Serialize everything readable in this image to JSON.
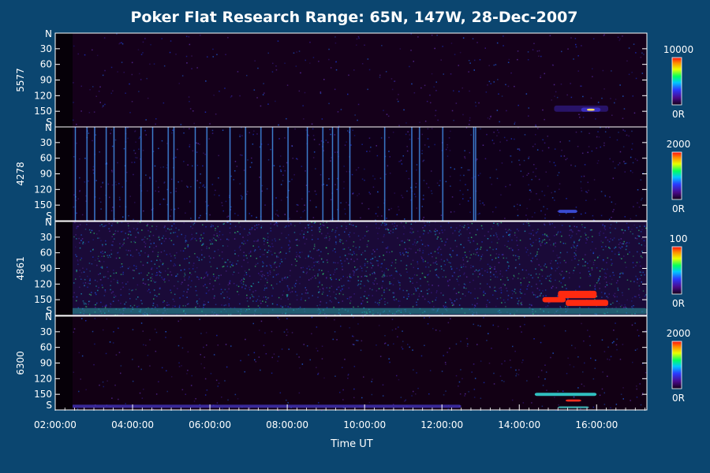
{
  "chart_data": {
    "type": "heatmap",
    "title": "Poker Flat Research Range: 65N, 147W, 28-Dec-2007",
    "xlabel": "Time UT",
    "x_ticks": [
      "02:00:00",
      "04:00:00",
      "06:00:00",
      "08:00:00",
      "10:00:00",
      "12:00:00",
      "14:00:00",
      "16:00:00"
    ],
    "x_range_hours": [
      2.0,
      17.3
    ],
    "y_ticks": [
      "N",
      "30",
      "60",
      "90",
      "120",
      "150",
      "S"
    ],
    "y_range_deg": [
      0,
      180
    ],
    "panels": [
      {
        "channel": "5577",
        "colorbar_max": "10000",
        "colorbar_min": "0R",
        "background_color": "#15001a",
        "noise_density": 0.3,
        "streaks": [],
        "features": [
          {
            "t_start": 14.9,
            "t_end": 16.3,
            "y_center": 145,
            "y_halfwidth": 6,
            "color": "#2a1570",
            "opacity": 0.9
          },
          {
            "t_start": 15.6,
            "t_end": 16.1,
            "y_center": 147,
            "y_halfwidth": 4,
            "color": "#3b2fc0",
            "opacity": 1
          },
          {
            "t_start": 15.75,
            "t_end": 15.95,
            "y_center": 147,
            "y_halfwidth": 2,
            "color": "#ffe060",
            "opacity": 1
          }
        ]
      },
      {
        "channel": "4278",
        "colorbar_max": "2000",
        "colorbar_min": "0R",
        "background_color": "#10001a",
        "noise_density": 0.6,
        "streaks": [
          2.3,
          2.35,
          2.5,
          2.8,
          3.0,
          3.3,
          3.5,
          3.8,
          4.2,
          4.5,
          4.9,
          5.05,
          5.6,
          5.9,
          6.5,
          6.9,
          7.3,
          7.6,
          8.0,
          8.5,
          8.9,
          9.15,
          9.3,
          9.6,
          10.5,
          11.2,
          11.4,
          12.0,
          12.8,
          12.85
        ],
        "features": [
          {
            "t_start": 15.0,
            "t_end": 15.5,
            "y_center": 162,
            "y_halfwidth": 3,
            "color": "#3a4ad0",
            "opacity": 1
          }
        ]
      },
      {
        "channel": "4861",
        "colorbar_max": "100",
        "colorbar_min": "0R",
        "background_color": "#1a0a38",
        "noise_density": 2.2,
        "streaks": [],
        "features": [
          {
            "t_start": 2.0,
            "t_end": 17.3,
            "y_center": 172,
            "y_halfwidth": 6,
            "color": "#2aa0a0",
            "opacity": 0.55
          },
          {
            "t_start": 14.6,
            "t_end": 15.2,
            "y_center": 150,
            "y_halfwidth": 5,
            "color": "#ff2a10",
            "opacity": 1
          },
          {
            "t_start": 15.0,
            "t_end": 16.0,
            "y_center": 140,
            "y_halfwidth": 7,
            "color": "#ff2a10",
            "opacity": 1
          },
          {
            "t_start": 15.2,
            "t_end": 16.3,
            "y_center": 156,
            "y_halfwidth": 6,
            "color": "#ff2a10",
            "opacity": 1
          }
        ]
      },
      {
        "channel": "6300",
        "colorbar_max": "2000",
        "colorbar_min": "0R",
        "background_color": "#120014",
        "noise_density": 0.35,
        "streaks": [],
        "features": [
          {
            "t_start": 2.4,
            "t_end": 12.5,
            "y_center": 173,
            "y_halfwidth": 3,
            "color": "#4a3ad0",
            "opacity": 0.7
          },
          {
            "t_start": 14.4,
            "t_end": 16.0,
            "y_center": 150,
            "y_halfwidth": 3,
            "color": "#30c0c0",
            "opacity": 1
          },
          {
            "t_start": 15.2,
            "t_end": 15.6,
            "y_center": 162,
            "y_halfwidth": 2,
            "color": "#ff3020",
            "opacity": 1
          },
          {
            "t_start": 15.0,
            "t_end": 15.8,
            "y_center": 175,
            "y_halfwidth": 2,
            "color": "#40c0c0",
            "opacity": 0.8
          }
        ]
      }
    ]
  }
}
